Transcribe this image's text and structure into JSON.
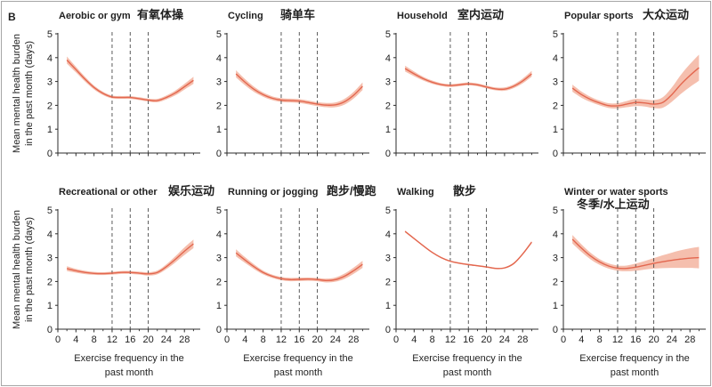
{
  "panel_label": "B",
  "axis_labels": {
    "y_lines": [
      "Mean mental health burden",
      "in the past month (days)"
    ],
    "x_lines": [
      "Exercise frequency in the",
      "past month"
    ]
  },
  "colors": {
    "line": "#e3674f",
    "band": "#f5bfae",
    "axis": "#2b2b2b",
    "reference_line": "#4a4a4a",
    "frame": "#a6a6a6"
  },
  "chart_data": [
    {
      "type": "line",
      "title": "Aerobic or gym",
      "title_cn": "有氧体操",
      "xlim": [
        0,
        31.5
      ],
      "ylim": [
        0,
        5
      ],
      "xticks": [
        0,
        4,
        8,
        12,
        16,
        20,
        24,
        28
      ],
      "xticks_minor": [
        2,
        6,
        10,
        14,
        18,
        22,
        26,
        30
      ],
      "yticks": [
        0,
        1,
        2,
        3,
        4,
        5
      ],
      "show_xtick_labels": false,
      "reference_lines_x": [
        12,
        16,
        20
      ],
      "series": [
        {
          "x": [
            2,
            4,
            6,
            8,
            10,
            12,
            14,
            16,
            18,
            20,
            22,
            24,
            26,
            28,
            30
          ],
          "y": [
            3.9,
            3.5,
            3.1,
            2.75,
            2.5,
            2.35,
            2.33,
            2.33,
            2.28,
            2.22,
            2.2,
            2.33,
            2.52,
            2.78,
            3.05
          ],
          "lower": [
            3.75,
            3.38,
            3.0,
            2.67,
            2.43,
            2.29,
            2.27,
            2.27,
            2.22,
            2.16,
            2.13,
            2.25,
            2.42,
            2.66,
            2.9
          ],
          "upper": [
            4.05,
            3.62,
            3.2,
            2.83,
            2.57,
            2.41,
            2.39,
            2.39,
            2.34,
            2.28,
            2.27,
            2.41,
            2.62,
            2.9,
            3.2
          ]
        }
      ]
    },
    {
      "type": "line",
      "title": "Cycling",
      "title_cn": "骑单车",
      "xlim": [
        0,
        31.5
      ],
      "ylim": [
        0,
        5
      ],
      "xticks": [
        0,
        4,
        8,
        12,
        16,
        20,
        24,
        28
      ],
      "xticks_minor": [
        2,
        6,
        10,
        14,
        18,
        22,
        26,
        30
      ],
      "yticks": [
        0,
        1,
        2,
        3,
        4,
        5
      ],
      "show_xtick_labels": false,
      "reference_lines_x": [
        12,
        16,
        20
      ],
      "series": [
        {
          "x": [
            2,
            4,
            6,
            8,
            10,
            12,
            14,
            16,
            18,
            20,
            22,
            24,
            26,
            28,
            30
          ],
          "y": [
            3.32,
            2.97,
            2.67,
            2.45,
            2.3,
            2.22,
            2.2,
            2.18,
            2.12,
            2.05,
            2.01,
            2.02,
            2.15,
            2.42,
            2.8
          ],
          "lower": [
            3.17,
            2.84,
            2.56,
            2.36,
            2.22,
            2.14,
            2.12,
            2.1,
            2.04,
            1.97,
            1.92,
            1.92,
            2.03,
            2.28,
            2.64
          ],
          "upper": [
            3.47,
            3.1,
            2.78,
            2.54,
            2.38,
            2.3,
            2.28,
            2.26,
            2.2,
            2.13,
            2.1,
            2.12,
            2.27,
            2.56,
            2.96
          ]
        }
      ]
    },
    {
      "type": "line",
      "title": "Household",
      "title_cn": "室内运动",
      "xlim": [
        0,
        31.5
      ],
      "ylim": [
        0,
        5
      ],
      "xticks": [
        0,
        4,
        8,
        12,
        16,
        20,
        24,
        28
      ],
      "xticks_minor": [
        2,
        6,
        10,
        14,
        18,
        22,
        26,
        30
      ],
      "yticks": [
        0,
        1,
        2,
        3,
        4,
        5
      ],
      "show_xtick_labels": false,
      "reference_lines_x": [
        12,
        16,
        20
      ],
      "series": [
        {
          "x": [
            2,
            4,
            6,
            8,
            10,
            12,
            14,
            16,
            18,
            20,
            22,
            24,
            26,
            28,
            30
          ],
          "y": [
            3.54,
            3.32,
            3.12,
            2.97,
            2.87,
            2.83,
            2.86,
            2.9,
            2.86,
            2.77,
            2.69,
            2.68,
            2.8,
            3.02,
            3.32
          ],
          "lower": [
            3.42,
            3.22,
            3.04,
            2.9,
            2.81,
            2.77,
            2.8,
            2.84,
            2.8,
            2.71,
            2.63,
            2.61,
            2.72,
            2.92,
            3.2
          ],
          "upper": [
            3.66,
            3.42,
            3.2,
            3.04,
            2.93,
            2.89,
            2.92,
            2.96,
            2.92,
            2.83,
            2.75,
            2.75,
            2.88,
            3.12,
            3.44
          ]
        }
      ]
    },
    {
      "type": "line",
      "title": "Popular sports",
      "title_cn": "大众运动",
      "xlim": [
        0,
        31.5
      ],
      "ylim": [
        0,
        5
      ],
      "xticks": [
        0,
        4,
        8,
        12,
        16,
        20,
        24,
        28
      ],
      "xticks_minor": [
        2,
        6,
        10,
        14,
        18,
        22,
        26,
        30
      ],
      "yticks": [
        0,
        1,
        2,
        3,
        4,
        5
      ],
      "show_xtick_labels": false,
      "reference_lines_x": [
        12,
        16,
        20
      ],
      "series": [
        {
          "x": [
            2,
            4,
            6,
            8,
            10,
            12,
            14,
            16,
            18,
            20,
            22,
            24,
            26,
            28,
            30
          ],
          "y": [
            2.72,
            2.45,
            2.25,
            2.1,
            1.99,
            1.98,
            2.05,
            2.12,
            2.1,
            2.05,
            2.12,
            2.45,
            2.88,
            3.25,
            3.58
          ],
          "lower": [
            2.57,
            2.32,
            2.14,
            2.0,
            1.89,
            1.87,
            1.92,
            1.97,
            1.95,
            1.88,
            1.9,
            2.15,
            2.48,
            2.77,
            3.03
          ],
          "upper": [
            2.87,
            2.58,
            2.36,
            2.2,
            2.09,
            2.09,
            2.18,
            2.27,
            2.25,
            2.22,
            2.34,
            2.75,
            3.28,
            3.73,
            4.13
          ]
        }
      ]
    },
    {
      "type": "line",
      "title": "Recreational or other",
      "title_cn": "娱乐运动",
      "xlim": [
        0,
        31.5
      ],
      "ylim": [
        0,
        5
      ],
      "xticks": [
        0,
        4,
        8,
        12,
        16,
        20,
        24,
        28
      ],
      "xticks_minor": [
        2,
        6,
        10,
        14,
        18,
        22,
        26,
        30
      ],
      "yticks": [
        0,
        1,
        2,
        3,
        4,
        5
      ],
      "show_xtick_labels": true,
      "reference_lines_x": [
        12,
        16,
        20
      ],
      "series": [
        {
          "x": [
            2,
            4,
            6,
            8,
            10,
            12,
            14,
            16,
            18,
            20,
            22,
            24,
            26,
            28,
            30
          ],
          "y": [
            2.54,
            2.45,
            2.38,
            2.34,
            2.33,
            2.35,
            2.38,
            2.38,
            2.35,
            2.32,
            2.38,
            2.62,
            2.93,
            3.27,
            3.58
          ],
          "lower": [
            2.44,
            2.37,
            2.31,
            2.28,
            2.27,
            2.29,
            2.32,
            2.32,
            2.29,
            2.25,
            2.3,
            2.52,
            2.8,
            3.11,
            3.4
          ],
          "upper": [
            2.64,
            2.53,
            2.45,
            2.4,
            2.39,
            2.41,
            2.44,
            2.44,
            2.41,
            2.39,
            2.46,
            2.72,
            3.06,
            3.43,
            3.76
          ]
        }
      ]
    },
    {
      "type": "line",
      "title": "Running or jogging",
      "title_cn": "跑步/慢跑",
      "xlim": [
        0,
        31.5
      ],
      "ylim": [
        0,
        5
      ],
      "xticks": [
        0,
        4,
        8,
        12,
        16,
        20,
        24,
        28
      ],
      "xticks_minor": [
        2,
        6,
        10,
        14,
        18,
        22,
        26,
        30
      ],
      "yticks": [
        0,
        1,
        2,
        3,
        4,
        5
      ],
      "show_xtick_labels": true,
      "reference_lines_x": [
        12,
        16,
        20
      ],
      "series": [
        {
          "x": [
            2,
            4,
            6,
            8,
            10,
            12,
            14,
            16,
            18,
            20,
            22,
            24,
            26,
            28,
            30
          ],
          "y": [
            3.2,
            2.9,
            2.62,
            2.38,
            2.22,
            2.12,
            2.08,
            2.09,
            2.1,
            2.08,
            2.04,
            2.08,
            2.22,
            2.45,
            2.72
          ],
          "lower": [
            3.05,
            2.78,
            2.52,
            2.3,
            2.15,
            2.05,
            2.01,
            2.02,
            2.03,
            2.01,
            1.96,
            1.99,
            2.11,
            2.32,
            2.57
          ],
          "upper": [
            3.35,
            3.02,
            2.72,
            2.46,
            2.29,
            2.19,
            2.15,
            2.16,
            2.17,
            2.15,
            2.12,
            2.17,
            2.33,
            2.58,
            2.87
          ]
        }
      ]
    },
    {
      "type": "line",
      "title": "Walking",
      "title_cn": "散步",
      "xlim": [
        0,
        31.5
      ],
      "ylim": [
        0,
        5
      ],
      "xticks": [
        0,
        4,
        8,
        12,
        16,
        20,
        24,
        28
      ],
      "xticks_minor": [
        2,
        6,
        10,
        14,
        18,
        22,
        26,
        30
      ],
      "yticks": [
        0,
        1,
        2,
        3,
        4,
        5
      ],
      "show_xtick_labels": true,
      "reference_lines_x": [
        12,
        16,
        20
      ],
      "series": [
        {
          "x": [
            2,
            4,
            6,
            8,
            10,
            12,
            14,
            16,
            18,
            20,
            22,
            24,
            26,
            28,
            30
          ],
          "y": [
            4.1,
            3.8,
            3.5,
            3.22,
            3.0,
            2.85,
            2.77,
            2.71,
            2.66,
            2.61,
            2.55,
            2.57,
            2.75,
            3.15,
            3.65
          ],
          "lower": [
            4.06,
            3.77,
            3.47,
            3.19,
            2.97,
            2.82,
            2.74,
            2.68,
            2.63,
            2.58,
            2.52,
            2.54,
            2.71,
            3.11,
            3.6
          ],
          "upper": [
            4.14,
            3.83,
            3.53,
            3.25,
            3.03,
            2.88,
            2.8,
            2.74,
            2.69,
            2.64,
            2.58,
            2.6,
            2.79,
            3.19,
            3.7
          ]
        }
      ]
    },
    {
      "type": "line",
      "title": "Winter or water sports",
      "title_cn": "冬季/水上运动",
      "xlim": [
        0,
        31.5
      ],
      "ylim": [
        0,
        5
      ],
      "xticks": [
        0,
        4,
        8,
        12,
        16,
        20,
        24,
        28
      ],
      "xticks_minor": [
        2,
        6,
        10,
        14,
        18,
        22,
        26,
        30
      ],
      "yticks": [
        0,
        1,
        2,
        3,
        4,
        5
      ],
      "show_xtick_labels": true,
      "reference_lines_x": [
        12,
        16,
        20
      ],
      "series": [
        {
          "x": [
            2,
            4,
            6,
            8,
            10,
            12,
            14,
            16,
            18,
            20,
            22,
            24,
            26,
            28,
            30
          ],
          "y": [
            3.77,
            3.4,
            3.07,
            2.82,
            2.65,
            2.56,
            2.55,
            2.6,
            2.68,
            2.76,
            2.83,
            2.89,
            2.94,
            2.98,
            3.0
          ],
          "lower": [
            3.59,
            3.24,
            2.93,
            2.7,
            2.54,
            2.45,
            2.43,
            2.45,
            2.5,
            2.54,
            2.56,
            2.57,
            2.57,
            2.57,
            2.55
          ],
          "upper": [
            3.95,
            3.56,
            3.21,
            2.94,
            2.76,
            2.67,
            2.67,
            2.75,
            2.86,
            2.98,
            3.1,
            3.21,
            3.31,
            3.39,
            3.45
          ]
        }
      ]
    }
  ]
}
